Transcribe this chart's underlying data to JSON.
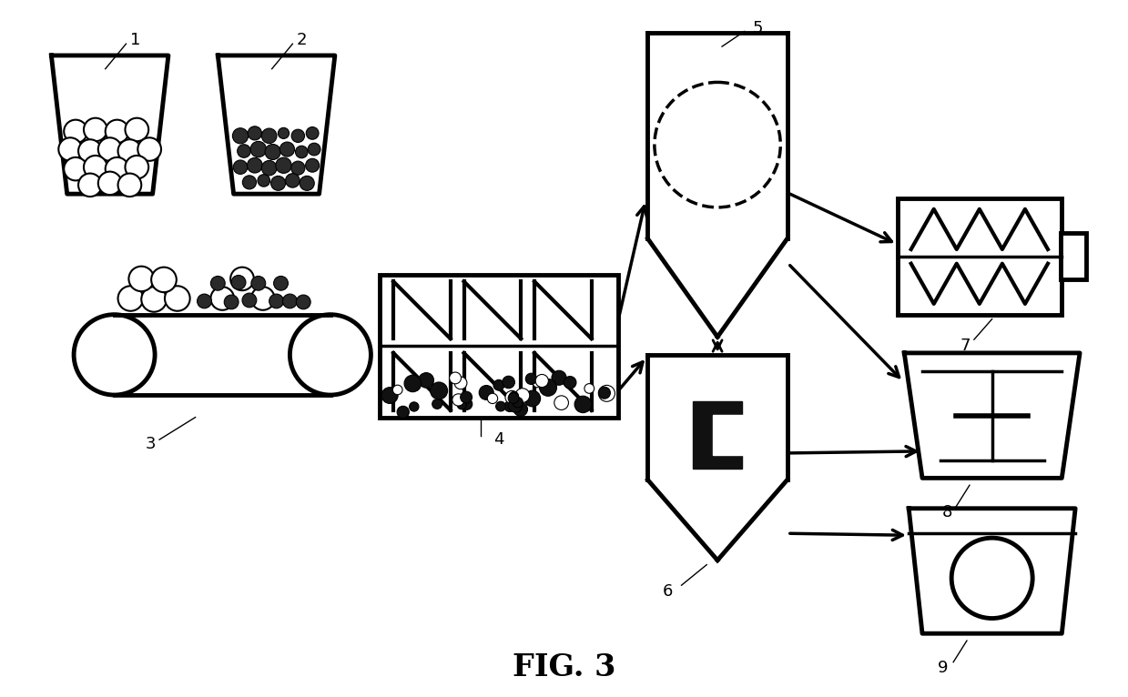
{
  "bg_color": "#ffffff",
  "lc": "#000000",
  "lw": 2.5,
  "tlw": 3.5,
  "title": "FIG. 3",
  "title_fontsize": 24,
  "title_fontweight": "bold",
  "fig_width": 12.39,
  "fig_height": 7.66
}
